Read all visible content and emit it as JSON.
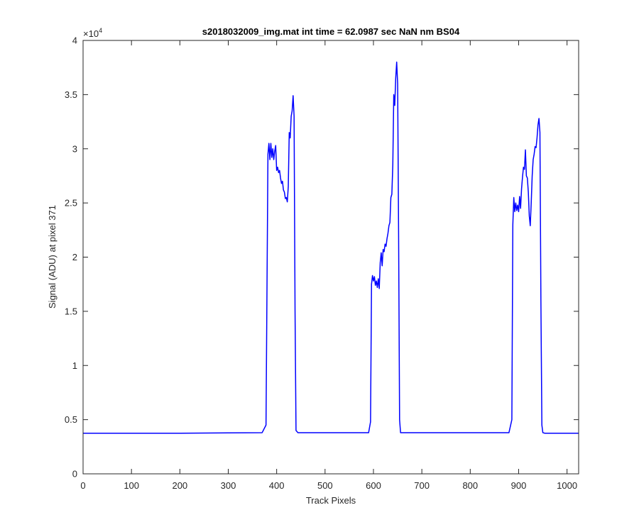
{
  "chart_data": {
    "type": "line",
    "title": "s2018032009_img.mat int time = 62.0987 sec  NaN nm BS04",
    "xlabel": "Track Pixels",
    "ylabel": "Signal (ADU) at pixel 371",
    "xlim": [
      0,
      1024
    ],
    "ylim": [
      0,
      40000
    ],
    "y_exponent_label": "×10",
    "y_exponent_power": "4",
    "x_ticks": [
      0,
      100,
      200,
      300,
      400,
      500,
      600,
      700,
      800,
      900,
      1000
    ],
    "x_tick_labels": [
      "0",
      "100",
      "200",
      "300",
      "400",
      "500",
      "600",
      "700",
      "800",
      "900",
      "1000"
    ],
    "y_ticks": [
      0,
      5000,
      10000,
      15000,
      20000,
      25000,
      30000,
      35000,
      40000
    ],
    "y_tick_labels": [
      "0",
      "0.5",
      "1",
      "1.5",
      "2",
      "2.5",
      "3",
      "3.5",
      "4"
    ],
    "grid": false,
    "line_color": "#0000ff",
    "series": [
      {
        "x": [
          0,
          100,
          200,
          300,
          370,
          378,
          382,
          384,
          386,
          388,
          390,
          392,
          394,
          396,
          398,
          400,
          402,
          404,
          406,
          408,
          410,
          412,
          414,
          416,
          418,
          420,
          422,
          424,
          426,
          428,
          430,
          432,
          434,
          436,
          438,
          440,
          444,
          500,
          590,
          594,
          596,
          598,
          600,
          602,
          604,
          606,
          608,
          610,
          612,
          614,
          616,
          618,
          620,
          622,
          624,
          626,
          628,
          630,
          632,
          634,
          636,
          638,
          640,
          642,
          644,
          646,
          648,
          650,
          652,
          654,
          656,
          660,
          700,
          800,
          880,
          886,
          888,
          890,
          892,
          894,
          896,
          898,
          900,
          902,
          904,
          906,
          908,
          910,
          912,
          914,
          916,
          918,
          920,
          922,
          924,
          926,
          928,
          930,
          932,
          934,
          936,
          938,
          940,
          942,
          944,
          946,
          948,
          950,
          954,
          1000,
          1024
        ],
        "y": [
          3750,
          3750,
          3750,
          3780,
          3800,
          4500,
          29500,
          30500,
          29000,
          30500,
          29200,
          30000,
          29000,
          29800,
          30300,
          28000,
          28300,
          27800,
          28000,
          27300,
          26800,
          27000,
          26200,
          26000,
          25400,
          25500,
          25100,
          26500,
          31500,
          31000,
          33000,
          33500,
          34900,
          33000,
          15000,
          4000,
          3800,
          3800,
          3800,
          4800,
          17500,
          18300,
          17800,
          18200,
          17400,
          17800,
          17200,
          18000,
          17100,
          19500,
          20400,
          19200,
          20700,
          20500,
          21200,
          21000,
          21700,
          22200,
          22900,
          23200,
          25500,
          25800,
          28500,
          35000,
          34000,
          36500,
          38000,
          36000,
          22000,
          5000,
          3800,
          3800,
          3800,
          3800,
          3800,
          5000,
          23000,
          25500,
          24200,
          25000,
          24300,
          24800,
          24200,
          25600,
          24500,
          26300,
          27400,
          28300,
          28100,
          29900,
          27500,
          27300,
          26000,
          23800,
          22900,
          25000,
          27500,
          29000,
          29500,
          30200,
          30100,
          31000,
          32200,
          32800,
          31500,
          16000,
          4500,
          3800,
          3750,
          3750,
          3750
        ]
      }
    ]
  }
}
